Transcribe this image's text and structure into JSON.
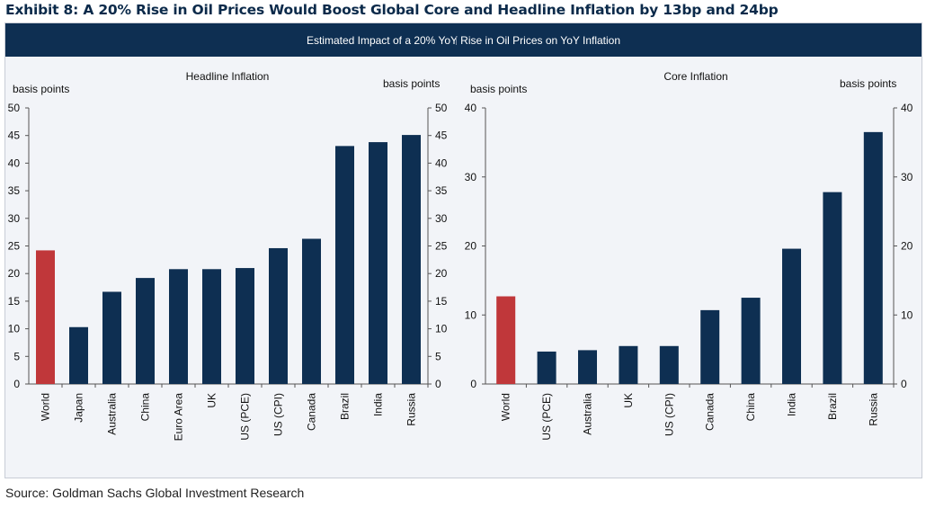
{
  "exhibit_title": "Exhibit 8: A 20% Rise in Oil Prices Would Boost Global Core and Headline Inflation by 13bp and 24bp",
  "banner": "Estimated Impact of a 20% YoY Rise in Oil Prices on YoY Inflation",
  "source": "Source: Goldman Sachs Global Investment Research",
  "colors": {
    "highlight": "#c0373a",
    "bar": "#0e2f52",
    "banner": "#0e2f52"
  },
  "chart_data": [
    {
      "type": "bar",
      "title": "Headline Inflation",
      "ylabel": "basis points",
      "ylabel_right": "basis points",
      "ylim": [
        0,
        50
      ],
      "yticks": [
        0,
        5,
        10,
        15,
        20,
        25,
        30,
        35,
        40,
        45,
        50
      ],
      "categories": [
        "World",
        "Japan",
        "Australia",
        "China",
        "Euro Area",
        "UK",
        "US (PCE)",
        "US (CPI)",
        "Canada",
        "Brazil",
        "India",
        "Russia"
      ],
      "values": [
        24.2,
        10.3,
        16.7,
        19.2,
        20.8,
        20.8,
        21.0,
        24.6,
        26.3,
        43.1,
        43.8,
        45.1
      ],
      "highlight": [
        "World"
      ],
      "grid": false
    },
    {
      "type": "bar",
      "title": "Core Inflation",
      "ylabel": "basis points",
      "ylabel_right": "basis points",
      "ylim": [
        0,
        40
      ],
      "yticks": [
        0,
        10,
        20,
        30,
        40
      ],
      "categories": [
        "World",
        "US (PCE)",
        "Australia",
        "UK",
        "US (CPI)",
        "Canada",
        "China",
        "India",
        "Brazil",
        "Russia"
      ],
      "values": [
        12.7,
        4.7,
        4.9,
        5.5,
        5.5,
        10.7,
        12.5,
        19.6,
        27.8,
        36.5
      ],
      "highlight": [
        "World"
      ],
      "grid": false
    }
  ]
}
